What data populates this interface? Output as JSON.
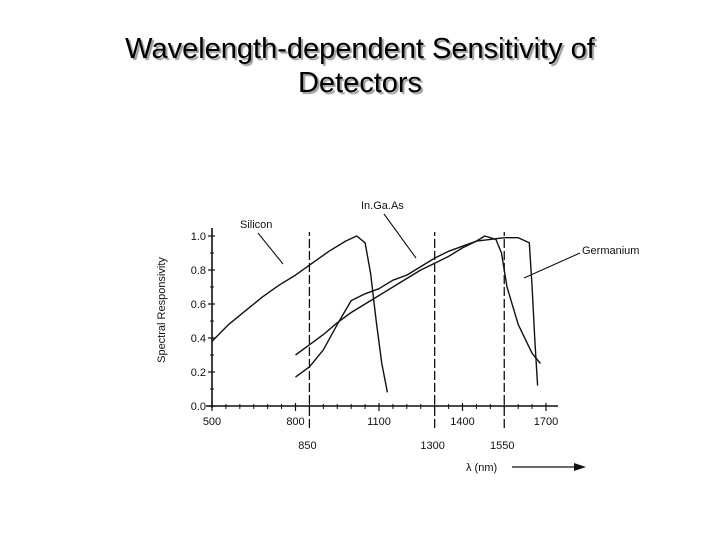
{
  "slide": {
    "title_line1": "Wavelength-dependent Sensitivity of",
    "title_line2": "Detectors"
  },
  "chart_data": {
    "type": "line",
    "title": "",
    "xlabel": "λ (nm)",
    "ylabel": "Spectral Responsivity",
    "xlim": [
      500,
      1700
    ],
    "ylim": [
      0.0,
      1.0
    ],
    "x_ticks": [
      500,
      800,
      1100,
      1400,
      1700
    ],
    "y_ticks": [
      0.0,
      0.2,
      0.4,
      0.6,
      0.8,
      1.0
    ],
    "y_tick_labels": [
      "0.0",
      "0.2",
      "0.4",
      "0.6",
      "0.8",
      "1.0"
    ],
    "x_tick_labels": [
      "500",
      "800",
      "1100",
      "1400",
      "1700"
    ],
    "marked_wavelengths": [
      850,
      1300,
      1550
    ],
    "marked_labels": [
      "850",
      "1300",
      "1550"
    ],
    "grid": false,
    "legend": "none",
    "series": [
      {
        "name": "Silicon",
        "points": [
          [
            500,
            0.38
          ],
          [
            560,
            0.48
          ],
          [
            620,
            0.56
          ],
          [
            680,
            0.64
          ],
          [
            740,
            0.71
          ],
          [
            800,
            0.77
          ],
          [
            860,
            0.84
          ],
          [
            920,
            0.91
          ],
          [
            980,
            0.97
          ],
          [
            1020,
            1.0
          ],
          [
            1050,
            0.96
          ],
          [
            1070,
            0.78
          ],
          [
            1090,
            0.5
          ],
          [
            1110,
            0.25
          ],
          [
            1130,
            0.08
          ]
        ]
      },
      {
        "name": "InGaAs",
        "points": [
          [
            800,
            0.17
          ],
          [
            850,
            0.23
          ],
          [
            900,
            0.33
          ],
          [
            950,
            0.48
          ],
          [
            1000,
            0.62
          ],
          [
            1050,
            0.66
          ],
          [
            1100,
            0.69
          ],
          [
            1150,
            0.74
          ],
          [
            1200,
            0.77
          ],
          [
            1250,
            0.82
          ],
          [
            1300,
            0.87
          ],
          [
            1350,
            0.91
          ],
          [
            1400,
            0.94
          ],
          [
            1450,
            0.97
          ],
          [
            1500,
            0.98
          ],
          [
            1550,
            0.99
          ],
          [
            1600,
            0.99
          ],
          [
            1640,
            0.96
          ],
          [
            1650,
            0.7
          ],
          [
            1660,
            0.38
          ],
          [
            1670,
            0.12
          ]
        ]
      },
      {
        "name": "Germanium",
        "points": [
          [
            800,
            0.3
          ],
          [
            850,
            0.36
          ],
          [
            900,
            0.42
          ],
          [
            950,
            0.49
          ],
          [
            1000,
            0.55
          ],
          [
            1050,
            0.6
          ],
          [
            1100,
            0.65
          ],
          [
            1150,
            0.7
          ],
          [
            1200,
            0.75
          ],
          [
            1250,
            0.8
          ],
          [
            1300,
            0.84
          ],
          [
            1350,
            0.88
          ],
          [
            1400,
            0.93
          ],
          [
            1450,
            0.97
          ],
          [
            1480,
            1.0
          ],
          [
            1520,
            0.98
          ],
          [
            1540,
            0.9
          ],
          [
            1560,
            0.7
          ],
          [
            1600,
            0.48
          ],
          [
            1650,
            0.31
          ],
          [
            1680,
            0.25
          ]
        ]
      }
    ],
    "annotations": [
      {
        "text": "Silicon",
        "series": "Silicon"
      },
      {
        "text": "In.Ga.As",
        "series": "InGaAs"
      },
      {
        "text": "Germanium",
        "series": "Germanium"
      }
    ]
  }
}
